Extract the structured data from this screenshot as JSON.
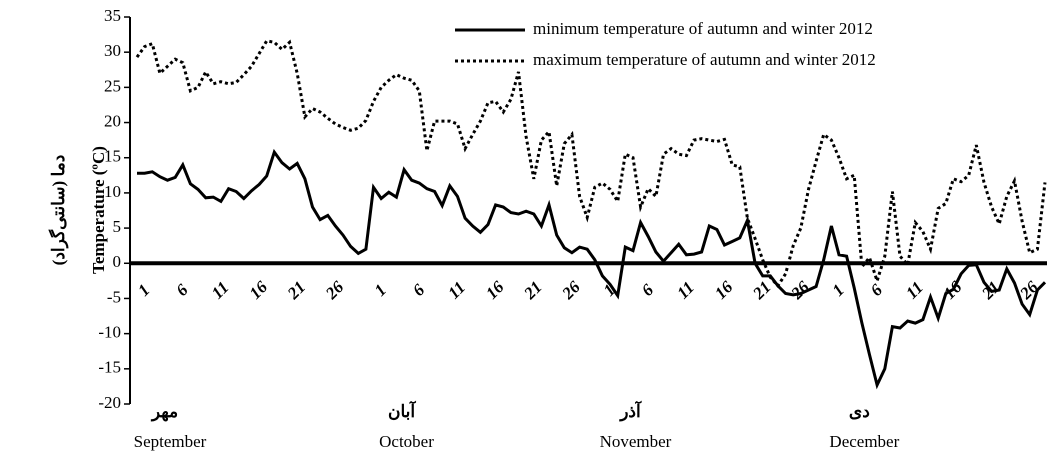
{
  "chart_data": {
    "type": "line",
    "y_title": [
      "دما (سانتی‌گراد)",
      "Temperature (ºC)"
    ],
    "ylim": [
      -20,
      35
    ],
    "yticks": [
      -20,
      -15,
      -10,
      -5,
      0,
      5,
      10,
      15,
      20,
      25,
      30,
      35
    ],
    "legend": "top-right",
    "month_labels": [
      {
        "persian": "مهر",
        "english": "September"
      },
      {
        "persian": "آبان",
        "english": "October"
      },
      {
        "persian": "آذر",
        "english": "November"
      },
      {
        "persian": "دی",
        "english": "December"
      }
    ],
    "categories": [
      "1",
      null,
      null,
      null,
      null,
      "6",
      null,
      null,
      null,
      null,
      "11",
      null,
      null,
      null,
      null,
      "16",
      null,
      null,
      null,
      null,
      "21",
      null,
      null,
      null,
      null,
      "26",
      null,
      null,
      null,
      null,
      null,
      "1",
      null,
      null,
      null,
      null,
      "6",
      null,
      null,
      null,
      null,
      "11",
      null,
      null,
      null,
      null,
      "16",
      null,
      null,
      null,
      null,
      "21",
      null,
      null,
      null,
      null,
      "26",
      null,
      null,
      null,
      null,
      "1",
      null,
      null,
      null,
      null,
      "6",
      null,
      null,
      null,
      null,
      "11",
      null,
      null,
      null,
      null,
      "16",
      null,
      null,
      null,
      null,
      "21",
      null,
      null,
      null,
      null,
      "26",
      null,
      null,
      null,
      null,
      "1",
      null,
      null,
      null,
      null,
      "6",
      null,
      null,
      null,
      null,
      "11",
      null,
      null,
      null,
      null,
      "16",
      null,
      null,
      null,
      null,
      "21",
      null,
      null,
      null,
      null,
      "26",
      null,
      null,
      null
    ],
    "series": [
      {
        "name": "minimum temperature of autumn and winter 2012",
        "color": "#000000",
        "style": "solid",
        "values": [
          12.8,
          12.8,
          13,
          12.3,
          11.8,
          12.2,
          14,
          11.3,
          10.5,
          9.3,
          9.4,
          8.8,
          10.6,
          10.2,
          9.2,
          10.3,
          11.2,
          12.4,
          15.8,
          14.3,
          13.4,
          14.2,
          12,
          8,
          6.2,
          6.8,
          5.3,
          4,
          2.4,
          1.4,
          2,
          10.8,
          9.2,
          10.1,
          9.4,
          13.3,
          11.8,
          11.4,
          10.6,
          10.2,
          8.2,
          11,
          9.5,
          6.4,
          5.3,
          4.4,
          5.5,
          8.3,
          8,
          7.2,
          7,
          7.4,
          7,
          5.3,
          8.3,
          4,
          2.2,
          1.5,
          2.3,
          2,
          0.5,
          -1.8,
          -3,
          -4.6,
          2.3,
          1.8,
          5.8,
          3.8,
          1.6,
          0.3,
          1.5,
          2.7,
          1.2,
          1.3,
          1.6,
          5.3,
          4.8,
          2.6,
          3.1,
          3.6,
          6.1,
          0,
          -1.8,
          -1.8,
          -3.2,
          -4.3,
          -4.5,
          -4.3,
          -3.8,
          -3.3,
          0.5,
          5.3,
          1.2,
          1,
          -3.5,
          -8.5,
          -13,
          -17.3,
          -15,
          -9,
          -9.2,
          -8.2,
          -8.5,
          -8,
          -4.8,
          -7.8,
          -4.3,
          -3.7,
          -1.5,
          -0.3,
          -0.2,
          -2.7,
          -4,
          -3.8,
          -0.8,
          -2.8,
          -5.8,
          -7.3,
          -3.8,
          -2.7
        ]
      },
      {
        "name": "maximum temperature of autumn and winter 2012",
        "color": "#000000",
        "style": "dotted",
        "values": [
          29.3,
          30.8,
          31.2,
          27,
          28,
          29,
          28.5,
          24.5,
          25,
          27.2,
          25.5,
          25.8,
          25.5,
          25.7,
          26.8,
          28,
          29.8,
          31.6,
          31.4,
          30.4,
          31.4,
          27,
          20.8,
          22,
          21.5,
          20.6,
          19.8,
          19.3,
          18.9,
          19.2,
          20.3,
          23,
          25,
          26,
          26.8,
          26.3,
          26,
          24.5,
          16,
          20.2,
          20.2,
          20.2,
          19.8,
          16.3,
          18.3,
          20.2,
          22.8,
          23,
          21.5,
          23.3,
          27.2,
          18,
          12,
          17.5,
          18.7,
          11,
          17,
          18.3,
          9.5,
          6.5,
          10.8,
          11.4,
          10.5,
          8.8,
          15.5,
          15,
          8,
          10.6,
          9.5,
          15.5,
          16.3,
          15.5,
          15.3,
          17.5,
          17.7,
          17.5,
          17.3,
          17.6,
          14,
          13.7,
          6.4,
          3.5,
          0.5,
          -2,
          -3.2,
          -1.5,
          2.5,
          5,
          10.5,
          14.5,
          18.3,
          17.5,
          15,
          12,
          12.5,
          -0.5,
          0.8,
          -2.5,
          1,
          10.2,
          1,
          -0.2,
          5.8,
          4.5,
          2,
          7.8,
          8.5,
          12,
          11.6,
          12.5,
          16.8,
          11.5,
          8,
          5.6,
          9.5,
          11.7,
          6,
          1.5,
          2,
          11.5
        ]
      }
    ]
  }
}
